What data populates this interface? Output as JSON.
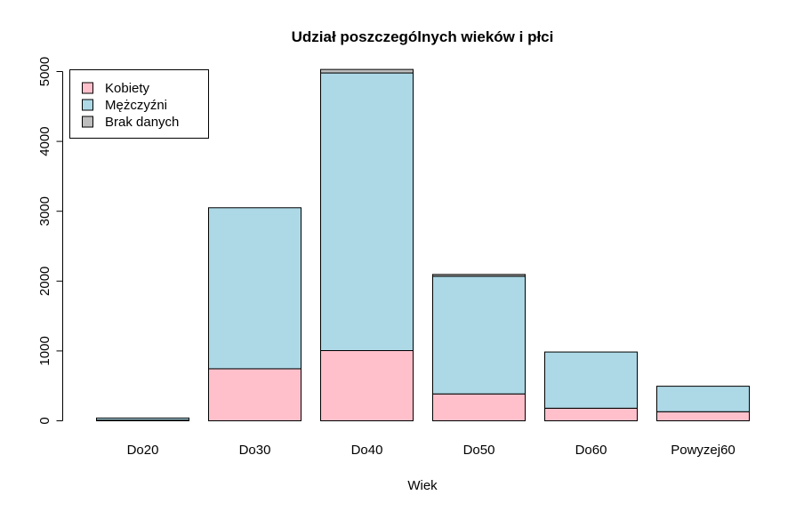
{
  "chart_data": {
    "type": "bar",
    "stacked": true,
    "title": "Udział poszczególnych wieków i płci",
    "xlabel": "Wiek",
    "ylabel": "",
    "categories": [
      "Do20",
      "Do30",
      "Do40",
      "Do50",
      "Do60",
      "Powyzej60"
    ],
    "ylim": [
      0,
      5000
    ],
    "yticks": [
      0,
      1000,
      2000,
      3000,
      4000,
      5000
    ],
    "grid": false,
    "legend_position": "top-left",
    "series": [
      {
        "name": "Kobiety",
        "color": "#ffc0cb",
        "values": [
          10,
          745,
          1005,
          385,
          180,
          130
        ]
      },
      {
        "name": "Mężczyźni",
        "color": "#add8e6",
        "values": [
          30,
          2305,
          3975,
          1685,
          805,
          365
        ]
      },
      {
        "name": "Brak danych",
        "color": "#bebebe",
        "values": [
          0,
          0,
          50,
          25,
          0,
          0
        ]
      }
    ]
  }
}
